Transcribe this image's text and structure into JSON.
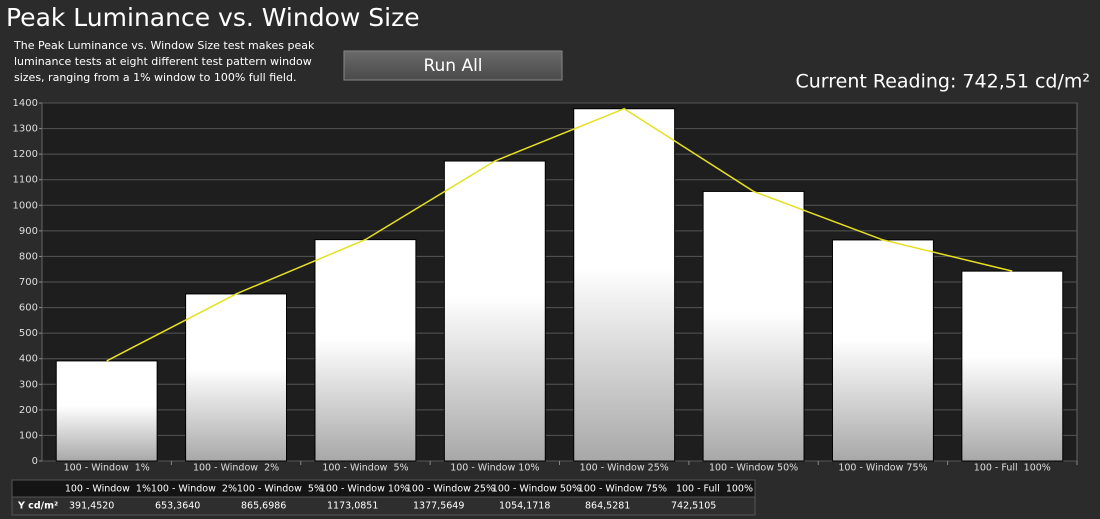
{
  "header": {
    "title": "Peak Luminance vs. Window Size",
    "description": [
      "The Peak Luminance vs. Window Size test makes peak",
      "luminance tests at eight different test pattern window",
      "sizes, ranging from a 1% window to 100% full field."
    ],
    "button": "Run All",
    "current_reading": "Current Reading: 742,51 cd/m²"
  },
  "chart_data": {
    "type": "bar",
    "categories": [
      "100 - Window  1%",
      "100 - Window  2%",
      "100 - Window  5%",
      "100 - Window 10%",
      "100 - Window 25%",
      "100 - Window 50%",
      "100 - Window 75%",
      "100 - Full  100%"
    ],
    "values": [
      391.452,
      653.364,
      865.6986,
      1173.0851,
      1377.5649,
      1054.1718,
      864.5281,
      742.5105
    ],
    "value_labels": [
      "391,4520",
      "653,3640",
      "865,6986",
      "1173,0851",
      "1377,5649",
      "1054,1718",
      "864,5281",
      "742,5105"
    ],
    "ylim": [
      0,
      1400
    ],
    "yticks": [
      0,
      100,
      200,
      300,
      400,
      500,
      600,
      700,
      800,
      900,
      1000,
      1100,
      1200,
      1300,
      1400
    ],
    "grid": true,
    "color": "#ffffff",
    "line_color": "#e6e020",
    "table_row_label": "Y cd/m²"
  }
}
